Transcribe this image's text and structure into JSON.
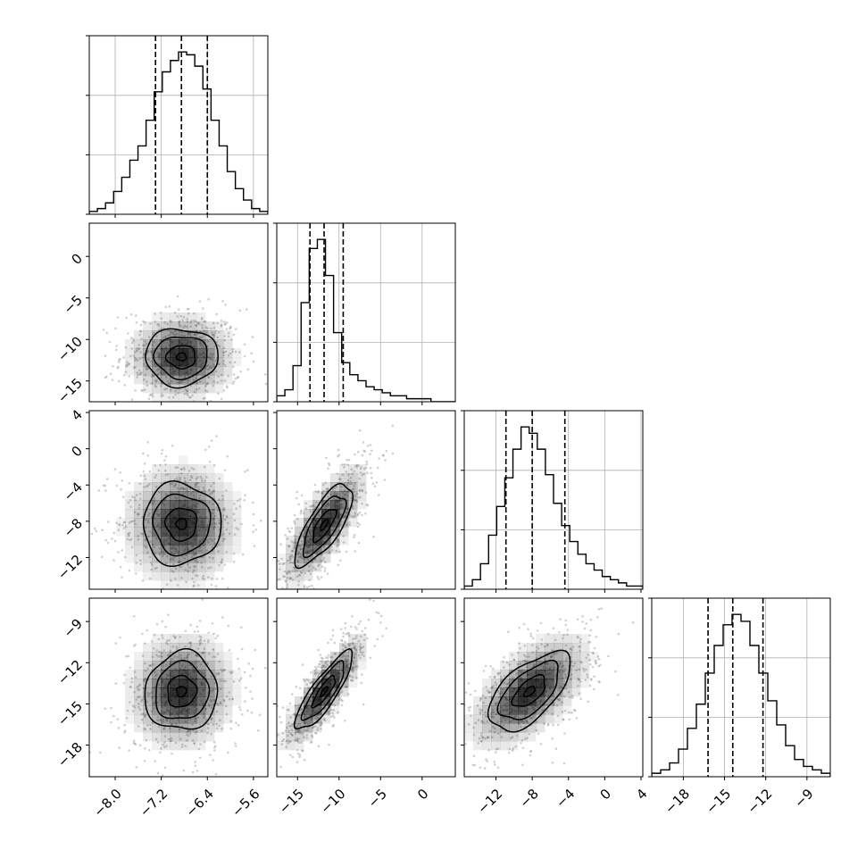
{
  "chart_data": {
    "type": "corner",
    "grid": true,
    "parameters": [
      {
        "ticks": [
          -8.0,
          -7.2,
          -6.4,
          -5.6
        ],
        "tick_labels": [
          "−8.0",
          "−7.2",
          "−6.4",
          "−5.6"
        ],
        "range": [
          -8.45,
          -5.35
        ],
        "quantiles": [
          -7.3,
          -6.85,
          -6.4
        ],
        "hist_counts": [
          1,
          2,
          4,
          8,
          13,
          19,
          24,
          33,
          43,
          50,
          54,
          57,
          56,
          52,
          44,
          33,
          24,
          15,
          9,
          5,
          2,
          1
        ]
      },
      {
        "ticks": [
          -15,
          -10,
          -5,
          0
        ],
        "tick_labels": [
          "−15",
          "−10",
          "−5",
          "0"
        ],
        "y_ticks": [
          0,
          -5,
          -10,
          -15
        ],
        "y_tick_labels": [
          "0",
          "−5",
          "−10",
          "−15"
        ],
        "range": [
          -17.5,
          4.0
        ],
        "quantiles": [
          -13.5,
          -11.8,
          -9.5
        ],
        "hist_counts": [
          2,
          4,
          12,
          33,
          51,
          54,
          42,
          23,
          13,
          9,
          7,
          5,
          4,
          3,
          2,
          2,
          1,
          1,
          1,
          0,
          0,
          0
        ]
      },
      {
        "ticks": [
          -12,
          -8,
          -4,
          0,
          4
        ],
        "tick_labels": [
          "−12",
          "−8",
          "−4",
          "0",
          "4"
        ],
        "y_ticks": [
          4,
          0,
          -4,
          -8,
          -12
        ],
        "y_tick_labels": [
          "4",
          "0",
          "−4",
          "−8",
          "−12"
        ],
        "range": [
          -15.5,
          4.2
        ],
        "quantiles": [
          -10.9,
          -8.0,
          -4.4
        ],
        "hist_counts": [
          1,
          3,
          8,
          17,
          26,
          35,
          44,
          51,
          49,
          44,
          36,
          27,
          20,
          15,
          11,
          8,
          6,
          4,
          3,
          2,
          1,
          1
        ]
      },
      {
        "ticks": [
          -18,
          -15,
          -12,
          -9
        ],
        "tick_labels": [
          "−18",
          "−15",
          "−12",
          "−9"
        ],
        "y_ticks": [
          -9,
          -12,
          -15,
          -18
        ],
        "y_tick_labels": [
          "−9",
          "−12",
          "−15",
          "−18"
        ],
        "range": [
          -20.3,
          -7.3
        ],
        "quantiles": [
          -16.2,
          -14.4,
          -12.2
        ],
        "hist_counts": [
          1,
          2,
          4,
          8,
          14,
          21,
          30,
          38,
          44,
          47,
          45,
          38,
          30,
          22,
          15,
          9,
          5,
          3,
          2,
          1
        ]
      }
    ],
    "pairs": [
      {
        "row": 1,
        "col": 0,
        "mean": [
          -6.85,
          -12.1
        ],
        "sd": [
          0.42,
          2.3
        ],
        "rho": 0.0
      },
      {
        "row": 2,
        "col": 0,
        "mean": [
          -6.85,
          -8.3
        ],
        "sd": [
          0.45,
          3.0
        ],
        "rho": 0.0
      },
      {
        "row": 2,
        "col": 1,
        "mean": [
          -11.8,
          -8.4
        ],
        "sd": [
          2.3,
          3.0
        ],
        "rho": 0.75
      },
      {
        "row": 3,
        "col": 0,
        "mean": [
          -6.85,
          -14.1
        ],
        "sd": [
          0.42,
          1.9
        ],
        "rho": 0.05
      },
      {
        "row": 3,
        "col": 1,
        "mean": [
          -11.8,
          -14.1
        ],
        "sd": [
          2.3,
          1.9
        ],
        "rho": 0.85
      },
      {
        "row": 3,
        "col": 2,
        "mean": [
          -8.3,
          -14.1
        ],
        "sd": [
          3.0,
          1.9
        ],
        "rho": 0.6
      }
    ],
    "contour_levels": [
      0.2,
      0.6,
      1.1,
      1.5
    ],
    "colors": {
      "line": "#000000",
      "grid": "#b0b0b0",
      "density": "#000000",
      "scatter": "#7a7a7a"
    }
  }
}
